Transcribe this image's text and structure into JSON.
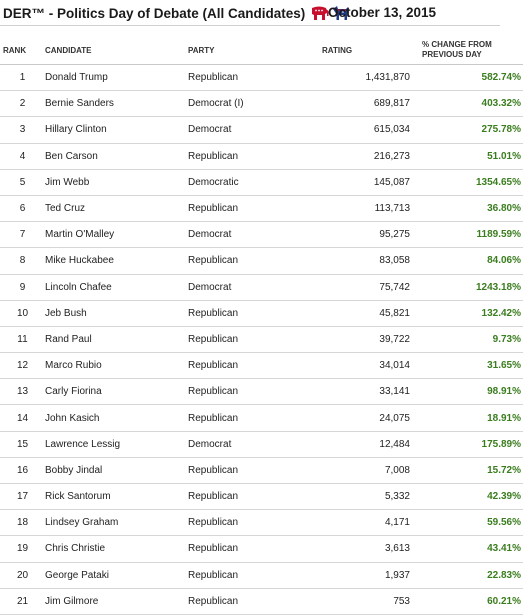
{
  "header": {
    "title": "DER™ - Politics Day of Debate (All Candidates)",
    "date": "October 13, 2015",
    "icons": [
      "republican-elephant-icon",
      "democrat-donkey-icon"
    ],
    "colors": {
      "republican": "#c8102e",
      "democrat": "#1f3c88",
      "positive_change": "#3a7d1e"
    }
  },
  "columns": {
    "rank": "RANK",
    "candidate": "CANDIDATE",
    "party": "PARTY",
    "rating": "RATING",
    "change_line1": "% CHANGE FROM",
    "change_line2": "PREVIOUS DAY"
  },
  "rows": [
    {
      "rank": "1",
      "candidate": "Donald Trump",
      "party": "Republican",
      "rating": "1,431,870",
      "change": "582.74%"
    },
    {
      "rank": "2",
      "candidate": "Bernie Sanders",
      "party": "Democrat (I)",
      "rating": "689,817",
      "change": "403.32%"
    },
    {
      "rank": "3",
      "candidate": "Hillary Clinton",
      "party": "Democrat",
      "rating": "615,034",
      "change": "275.78%"
    },
    {
      "rank": "4",
      "candidate": "Ben Carson",
      "party": "Republican",
      "rating": "216,273",
      "change": "51.01%"
    },
    {
      "rank": "5",
      "candidate": "Jim Webb",
      "party": "Democratic",
      "rating": "145,087",
      "change": "1354.65%"
    },
    {
      "rank": "6",
      "candidate": "Ted Cruz",
      "party": "Republican",
      "rating": "113,713",
      "change": "36.80%"
    },
    {
      "rank": "7",
      "candidate": "Martin O'Malley",
      "party": "Democrat",
      "rating": "95,275",
      "change": "1189.59%"
    },
    {
      "rank": "8",
      "candidate": "Mike Huckabee",
      "party": "Republican",
      "rating": "83,058",
      "change": "84.06%"
    },
    {
      "rank": "9",
      "candidate": "Lincoln Chafee",
      "party": "Democrat",
      "rating": "75,742",
      "change": "1243.18%"
    },
    {
      "rank": "10",
      "candidate": "Jeb Bush",
      "party": "Republican",
      "rating": "45,821",
      "change": "132.42%"
    },
    {
      "rank": "11",
      "candidate": "Rand Paul",
      "party": "Republican",
      "rating": "39,722",
      "change": "9.73%"
    },
    {
      "rank": "12",
      "candidate": "Marco Rubio",
      "party": "Republican",
      "rating": "34,014",
      "change": "31.65%"
    },
    {
      "rank": "13",
      "candidate": "Carly Fiorina",
      "party": "Republican",
      "rating": "33,141",
      "change": "98.91%"
    },
    {
      "rank": "14",
      "candidate": "John Kasich",
      "party": "Republican",
      "rating": "24,075",
      "change": "18.91%"
    },
    {
      "rank": "15",
      "candidate": "Lawrence Lessig",
      "party": "Democrat",
      "rating": "12,484",
      "change": "175.89%"
    },
    {
      "rank": "16",
      "candidate": "Bobby Jindal",
      "party": "Republican",
      "rating": "7,008",
      "change": "15.72%"
    },
    {
      "rank": "17",
      "candidate": "Rick Santorum",
      "party": "Republican",
      "rating": "5,332",
      "change": "42.39%"
    },
    {
      "rank": "18",
      "candidate": "Lindsey Graham",
      "party": "Republican",
      "rating": "4,171",
      "change": "59.56%"
    },
    {
      "rank": "19",
      "candidate": "Chris Christie",
      "party": "Republican",
      "rating": "3,613",
      "change": "43.41%"
    },
    {
      "rank": "20",
      "candidate": "George Pataki",
      "party": "Republican",
      "rating": "1,937",
      "change": "22.83%"
    },
    {
      "rank": "21",
      "candidate": "Jim Gilmore",
      "party": "Republican",
      "rating": "753",
      "change": "60.21%"
    }
  ]
}
